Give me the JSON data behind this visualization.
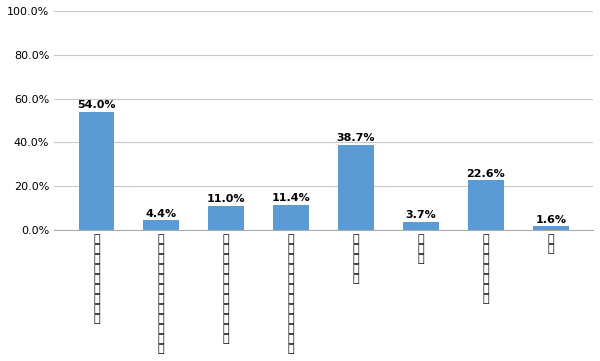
{
  "categories": [
    "資金・収入等の不足",
    "性能などの情報が得にくい",
    "信頼できる業者がいない",
    "相談できる専門家がいない",
    "タイミング",
    "その他",
    "特に問題はない",
    "不詳"
  ],
  "values": [
    54.0,
    4.4,
    11.0,
    11.4,
    38.7,
    3.7,
    22.6,
    1.6
  ],
  "bar_color": "#5B9BD5",
  "ylim": [
    0,
    100
  ],
  "yticks": [
    0,
    20,
    40,
    60,
    80,
    100
  ],
  "ytick_labels": [
    "0.0%",
    "20.0%",
    "40.0%",
    "60.0%",
    "80.0%",
    "100.0%"
  ],
  "background_color": "#ffffff",
  "grid_color": "#c8c8c8",
  "value_fontsize": 8,
  "tick_fontsize": 8,
  "bar_width": 0.55
}
